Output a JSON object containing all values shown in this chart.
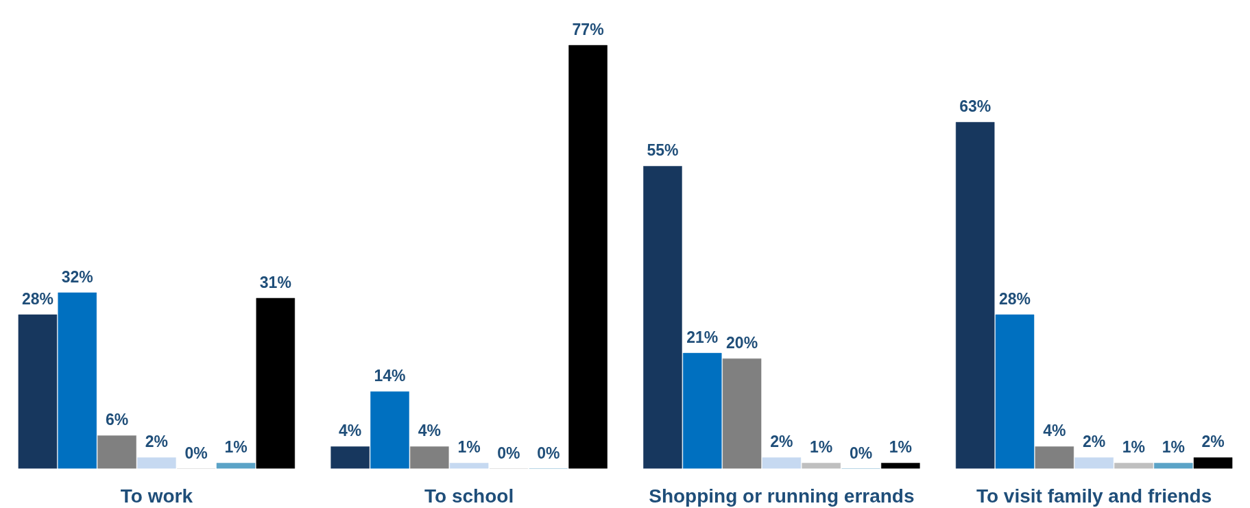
{
  "chart_data": {
    "type": "bar",
    "categories": [
      "To work",
      "To school",
      "Shopping or running errands",
      "To visit family and friends"
    ],
    "series": [
      {
        "color": "#17375e",
        "values": [
          28,
          4,
          55,
          63
        ],
        "value_labels": [
          "28%",
          "4%",
          "55%",
          "63%"
        ]
      },
      {
        "color": "#0070c0",
        "values": [
          32,
          14,
          21,
          28
        ],
        "value_labels": [
          "32%",
          "14%",
          "21%",
          "28%"
        ]
      },
      {
        "color": "#808080",
        "values": [
          6,
          4,
          20,
          4
        ],
        "value_labels": [
          "6%",
          "4%",
          "20%",
          "4%"
        ]
      },
      {
        "color": "#c6d9f1",
        "values": [
          2,
          1,
          2,
          2
        ],
        "value_labels": [
          "2%",
          "1%",
          "2%",
          "2%"
        ]
      },
      {
        "color": "#bfbfbf",
        "values": [
          0,
          0,
          1,
          1
        ],
        "value_labels": [
          "0%",
          "0%",
          "1%",
          "1%"
        ]
      },
      {
        "color": "#5ba3c7",
        "values": [
          1,
          0,
          0,
          1
        ],
        "value_labels": [
          "1%",
          "0%",
          "0%",
          "1%"
        ]
      },
      {
        "color": "#000000",
        "values": [
          31,
          77,
          1,
          2
        ],
        "value_labels": [
          "31%",
          "77%",
          "1%",
          "2%"
        ]
      }
    ],
    "grid": false
  }
}
